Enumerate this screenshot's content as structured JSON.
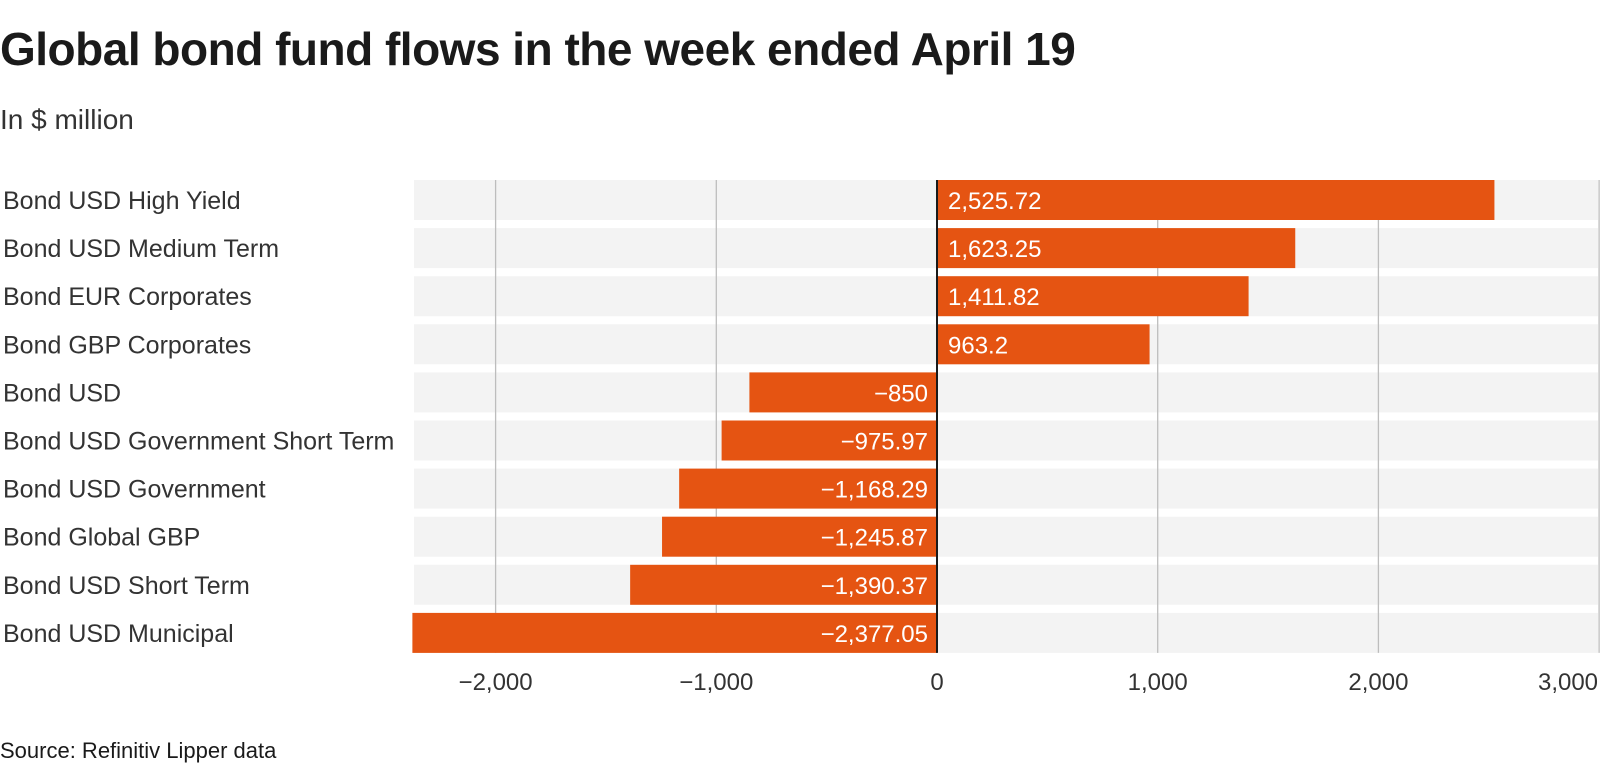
{
  "header": {
    "title": "Global bond fund flows in the week ended April 19",
    "subtitle": "In $ million"
  },
  "footer": {
    "source": "Source: Refinitiv Lipper data"
  },
  "colors": {
    "bar": "#e55412",
    "row_bg": "#f3f3f3",
    "grid": "#bdbdbd",
    "zero_line": "#1a1a1a"
  },
  "chart_data": {
    "type": "bar",
    "orientation": "horizontal",
    "title": "Global bond fund flows in the week ended April 19",
    "subtitle": "In $ million",
    "categories": [
      "Bond USD High Yield",
      "Bond USD Medium Term",
      "Bond EUR Corporates",
      "Bond GBP Corporates",
      "Bond USD",
      "Bond USD Government Short Term",
      "Bond USD Government",
      "Bond Global GBP",
      "Bond USD Short Term",
      "Bond USD Municipal"
    ],
    "values": [
      2525.72,
      1623.25,
      1411.82,
      963.2,
      -850,
      -975.97,
      -1168.29,
      -1245.87,
      -1390.37,
      -2377.05
    ],
    "value_labels": [
      "2,525.72",
      "1,623.25",
      "1,411.82",
      "963.2",
      "−850",
      "−975.97",
      "−1,168.29",
      "−1,245.87",
      "−1,390.37",
      "−2,377.05"
    ],
    "xlim": [
      -2377.05,
      3000
    ],
    "xticks": [
      -2000,
      -1000,
      0,
      1000,
      2000,
      3000
    ],
    "xtick_labels": [
      "−2,000",
      "−1,000",
      "0",
      "1,000",
      "2,000",
      "3,000"
    ],
    "xlabel": "",
    "ylabel": "",
    "grid": true,
    "source": "Source: Refinitiv Lipper data"
  }
}
